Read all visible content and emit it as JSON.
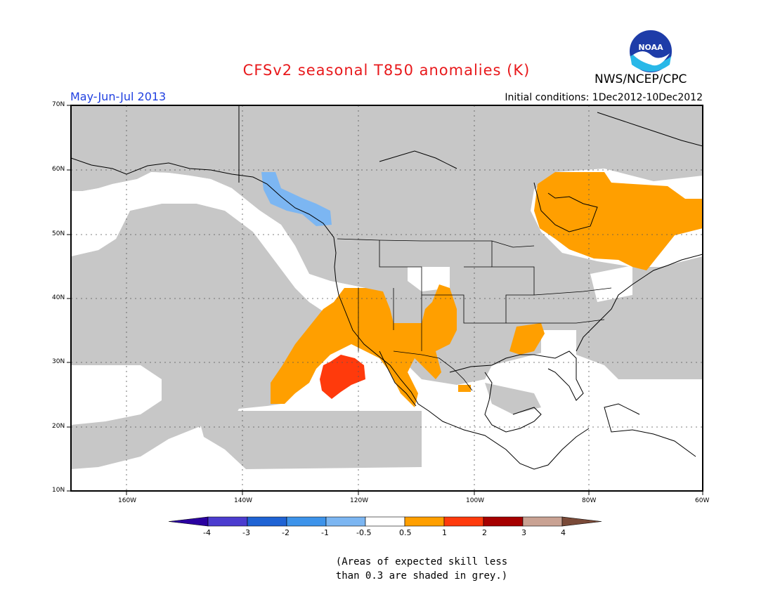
{
  "title": "CFSv2 seasonal T850 anomalies (K)",
  "period": "May-Jun-Jul 2013",
  "initial_conditions": "Initial conditions: 1Dec2012-10Dec2012",
  "agency": "NWS/NCEP/CPC",
  "logo_text": "NOAA",
  "lat_labels": [
    "70N",
    "60N",
    "50N",
    "40N",
    "30N",
    "20N",
    "10N"
  ],
  "lon_labels": [
    "160W",
    "140W",
    "120W",
    "100W",
    "80W",
    "60W"
  ],
  "colorbar": {
    "labels": [
      "-4",
      "-3",
      "-2",
      "-1",
      "-0.5",
      "0.5",
      "1",
      "2",
      "3",
      "4"
    ],
    "colors": [
      "#2a00a0",
      "#4b3ccf",
      "#1f63d4",
      "#3d93ea",
      "#7cb6f2",
      "#ffffff",
      "#ff9f00",
      "#ff3a0c",
      "#a60000",
      "#c9a293",
      "#7a4a38"
    ]
  },
  "note_lines": [
    "(Areas of expected skill less",
    "than 0.3 are shaded in grey.)"
  ],
  "colors": {
    "grey_skill": "#c7c7c7",
    "warm_05_1": "#ff9f00",
    "warm_1_2": "#ff3a0c",
    "cool_05_1": "#7cb6f2"
  }
}
